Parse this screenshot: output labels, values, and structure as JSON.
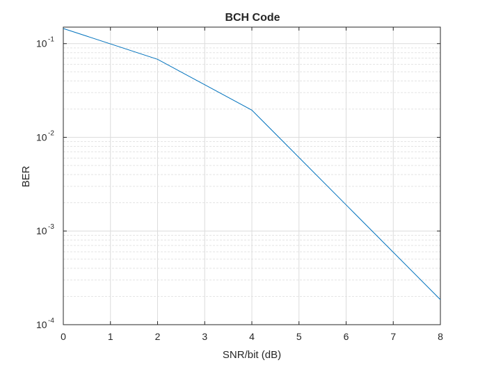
{
  "chart_data": {
    "type": "line",
    "title": "BCH Code",
    "xlabel": "SNR/bit (dB)",
    "ylabel": "BER",
    "xlim": [
      0,
      8
    ],
    "ylim": [
      0.0001,
      0.15
    ],
    "yscale": "log",
    "grid": true,
    "x_ticks": [
      0,
      1,
      2,
      3,
      4,
      5,
      6,
      7,
      8
    ],
    "y_ticks": [
      {
        "value": 0.1,
        "base": "10",
        "exp": "-1"
      },
      {
        "value": 0.01,
        "base": "10",
        "exp": "-2"
      },
      {
        "value": 0.001,
        "base": "10",
        "exp": "-3"
      },
      {
        "value": 0.0001,
        "base": "10",
        "exp": "-4"
      }
    ],
    "series": [
      {
        "x": [
          0,
          2,
          4,
          6,
          8
        ],
        "y": [
          0.145,
          0.068,
          0.0195,
          0.0019,
          0.000185
        ],
        "color": "#0072BD"
      }
    ]
  }
}
